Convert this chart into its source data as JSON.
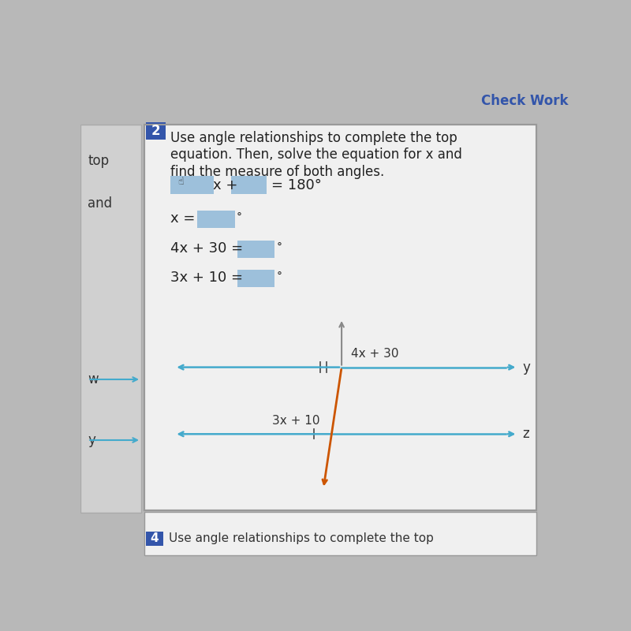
{
  "bg_color": "#b8b8b8",
  "card_color": "#f0f0f0",
  "card_border_color": "#999999",
  "check_work_text": "Check Work",
  "check_work_color": "#3355aa",
  "number_badge": "2",
  "number_badge_color": "#3355aa",
  "title_lines": [
    "Use angle relationships to complete the top",
    "equation. Then, solve the equation for x and",
    "find the measure of both angles."
  ],
  "input_box_color": "#8fb8d8",
  "line_color": "#44aacc",
  "transversal_color_lower": "#cc5500",
  "transversal_color_upper": "#888888",
  "bottom_badge": "4",
  "bottom_card_text": "Use angle relationships to complete the top",
  "left_panel_color": "#d0d0d0"
}
